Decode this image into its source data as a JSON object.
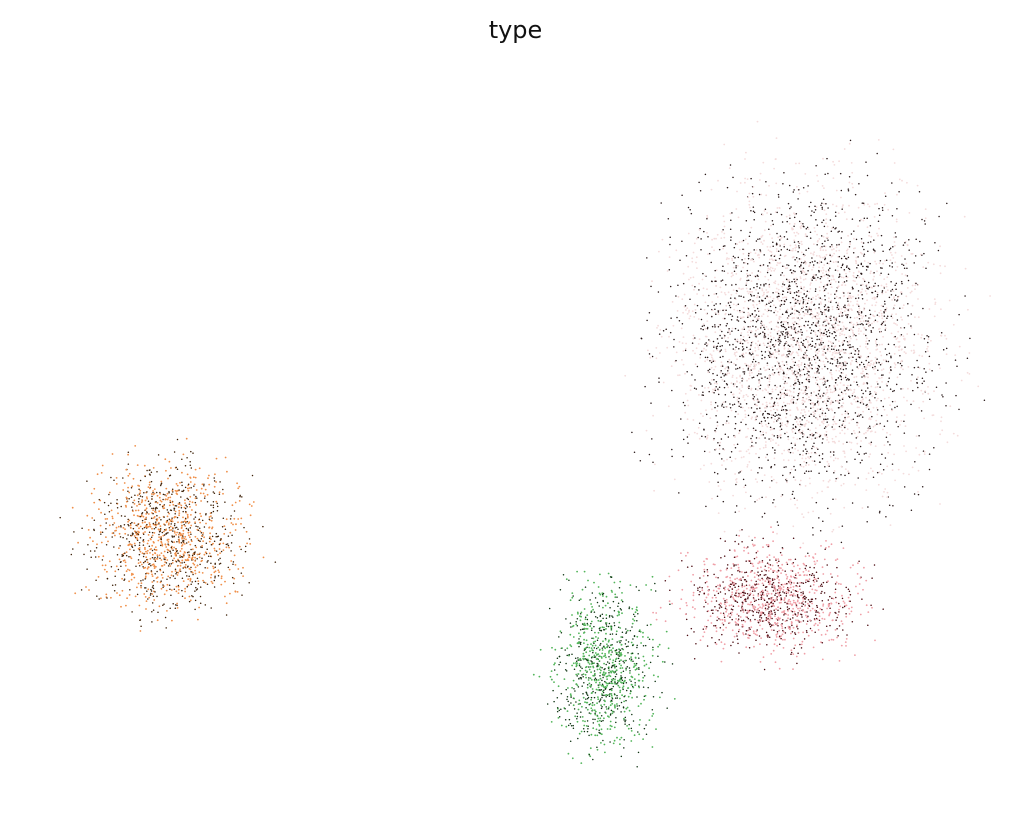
{
  "chart_data": {
    "type": "scatter",
    "title": "type",
    "xlabel": "",
    "ylabel": "",
    "axes_visible": false,
    "grid": false,
    "legend": "none",
    "xlim": [
      0,
      100
    ],
    "ylim": [
      0,
      100
    ],
    "clusters": [
      {
        "id": "orange",
        "color": "#f0904a",
        "dark_color": "#3d2108",
        "center": [
          13.5,
          35.0
        ],
        "spread": [
          7.5,
          10.0
        ],
        "n_points": 1300
      },
      {
        "id": "green",
        "color": "#52b55a",
        "dark_color": "#0f3312",
        "center": [
          59.5,
          17.0
        ],
        "spread": [
          5.0,
          10.5
        ],
        "n_points": 1000
      },
      {
        "id": "red",
        "color": "#f0a0a8",
        "dark_color": "#4a0a10",
        "center": [
          77.0,
          26.5
        ],
        "spread": [
          8.5,
          7.0
        ],
        "n_points": 1200
      },
      {
        "id": "brown",
        "color": "#f4dcdc",
        "dark_color": "#2a1a1a",
        "center": [
          80.5,
          62.0
        ],
        "spread": [
          13.0,
          20.0
        ],
        "n_points": 4200
      }
    ]
  }
}
